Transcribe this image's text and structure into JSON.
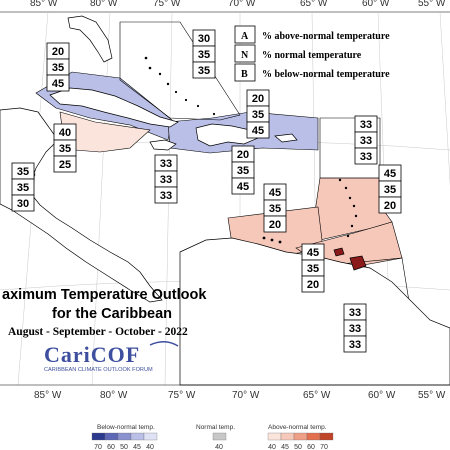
{
  "map": {
    "title_line1": "aximum Temperature Outlook",
    "title_line2": "for the Caribbean",
    "period": "August - September - October - 2022",
    "longitude_labels": [
      "85° W",
      "80° W",
      "75° W",
      "70° W",
      "65° W",
      "60° W",
      "55° W"
    ],
    "logo": {
      "name": "CariCOF",
      "tagline": "CARIBBEAN CLIMATE OUTLOOK FORUM"
    },
    "colors": {
      "below_normal_fill": "#b9bfe6",
      "above_normal_fill": "#f6c8ba",
      "light_above_fill": "#fbe4dc",
      "land": "#ffffff",
      "ocean": "#ffffff",
      "border": "#000000"
    }
  },
  "key": {
    "rows": [
      {
        "letter": "A",
        "text": "% above-normal temperature"
      },
      {
        "letter": "N",
        "text": "% normal temperature"
      },
      {
        "letter": "B",
        "text": "% below-normal temperature"
      }
    ]
  },
  "probability_boxes": [
    {
      "id": "bahamas-north",
      "values": [
        "30",
        "35",
        "35"
      ]
    },
    {
      "id": "cuba",
      "values": [
        "20",
        "35",
        "45"
      ]
    },
    {
      "id": "belize-yucatan",
      "values": [
        "40",
        "35",
        "25"
      ]
    },
    {
      "id": "hispaniola-north",
      "values": [
        "20",
        "35",
        "45"
      ]
    },
    {
      "id": "eastern-caribbean-north",
      "values": [
        "33",
        "33",
        "33"
      ]
    },
    {
      "id": "central-america",
      "values": [
        "35",
        "35",
        "30"
      ]
    },
    {
      "id": "jamaica",
      "values": [
        "33",
        "33",
        "33"
      ]
    },
    {
      "id": "hispaniola-south",
      "values": [
        "20",
        "35",
        "45"
      ]
    },
    {
      "id": "lesser-antilles",
      "values": [
        "45",
        "35",
        "20"
      ]
    },
    {
      "id": "caribbean-sea-south",
      "values": [
        "45",
        "35",
        "20"
      ]
    },
    {
      "id": "abc-islands",
      "values": [
        "45",
        "35",
        "20"
      ]
    },
    {
      "id": "guianas",
      "values": [
        "33",
        "33",
        "33"
      ]
    }
  ],
  "colorbar": {
    "below_label": "Below-normal temp.",
    "normal_label": "Normal temp.",
    "above_label": "Above-normal temp.",
    "below_ticks": [
      "70",
      "60",
      "50",
      "45",
      "40"
    ],
    "normal_ticks": [
      "40"
    ],
    "above_ticks": [
      "40",
      "45",
      "50",
      "60",
      "70"
    ],
    "below_colors": [
      "#2b3a8c",
      "#5c67b5",
      "#8a93cf",
      "#b9bfe6",
      "#dfe2f4"
    ],
    "normal_color": "#c8c8c8",
    "above_colors": [
      "#fbe4dc",
      "#f6c8ba",
      "#ef9f86",
      "#e2704f",
      "#c0442a"
    ]
  }
}
